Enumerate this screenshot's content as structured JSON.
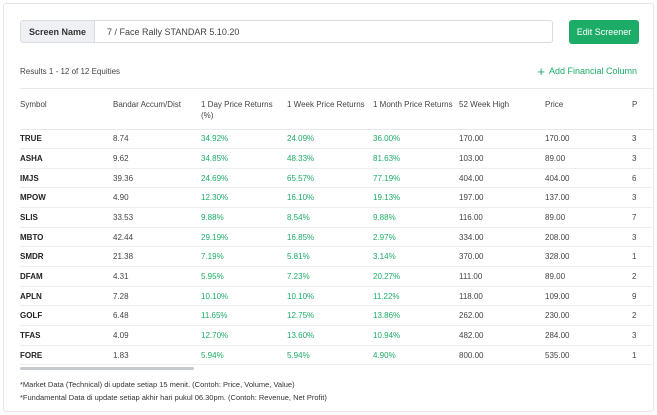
{
  "screen_name": {
    "label": "Screen Name",
    "value": "7 / Face Rally STANDAR 5.10.20"
  },
  "edit_button": "Edit Screener",
  "results_text": "Results 1 - 12 of 12 Equities",
  "add_column": "Add Financial Column",
  "columns": [
    "Symbol",
    "Bandar Accum/Dist",
    "1 Day Price Returns (%)",
    "1 Week Price Returns",
    "1 Month Price Returns",
    "52 Week High",
    "Price",
    "P"
  ],
  "rows": [
    [
      "TRUE",
      "8.74",
      "34.92%",
      "24.09%",
      "36.00%",
      "170.00",
      "170.00",
      "3"
    ],
    [
      "ASHA",
      "9.62",
      "34.85%",
      "48.33%",
      "81.63%",
      "103.00",
      "89.00",
      "3"
    ],
    [
      "IMJS",
      "39.36",
      "24.69%",
      "65.57%",
      "77.19%",
      "404.00",
      "404.00",
      "6"
    ],
    [
      "MPOW",
      "4.90",
      "12.30%",
      "16.10%",
      "19.13%",
      "197.00",
      "137.00",
      "3"
    ],
    [
      "SLIS",
      "33.53",
      "9.88%",
      "8.54%",
      "9.88%",
      "116.00",
      "89.00",
      "7"
    ],
    [
      "MBTO",
      "42.44",
      "29.19%",
      "16.85%",
      "2.97%",
      "334.00",
      "208.00",
      "3"
    ],
    [
      "SMDR",
      "21.38",
      "7.19%",
      "5.81%",
      "3.14%",
      "370.00",
      "328.00",
      "1"
    ],
    [
      "DFAM",
      "4.31",
      "5.95%",
      "7.23%",
      "20.27%",
      "111.00",
      "89.00",
      "2"
    ],
    [
      "APLN",
      "7.28",
      "10.10%",
      "10.10%",
      "11.22%",
      "118.00",
      "109.00",
      "9"
    ],
    [
      "GOLF",
      "6.48",
      "11.65%",
      "12.75%",
      "13.86%",
      "262.00",
      "230.00",
      "2"
    ],
    [
      "TFAS",
      "4.09",
      "12.70%",
      "13.60%",
      "10.94%",
      "482.00",
      "284.00",
      "3"
    ],
    [
      "FORE",
      "1.83",
      "5.94%",
      "5.94%",
      "4.90%",
      "800.00",
      "535.00",
      "1"
    ]
  ],
  "footnotes": [
    "*Market Data (Technical) di update setiap 15 menit. (Contoh: Price, Volume, Value)",
    "*Fundamental Data di update setiap akhir hari pukul 06.30pm. (Contoh: Revenue, Net Profit)"
  ],
  "colors": {
    "accent": "#1dac68",
    "positive": "#1dac68"
  }
}
